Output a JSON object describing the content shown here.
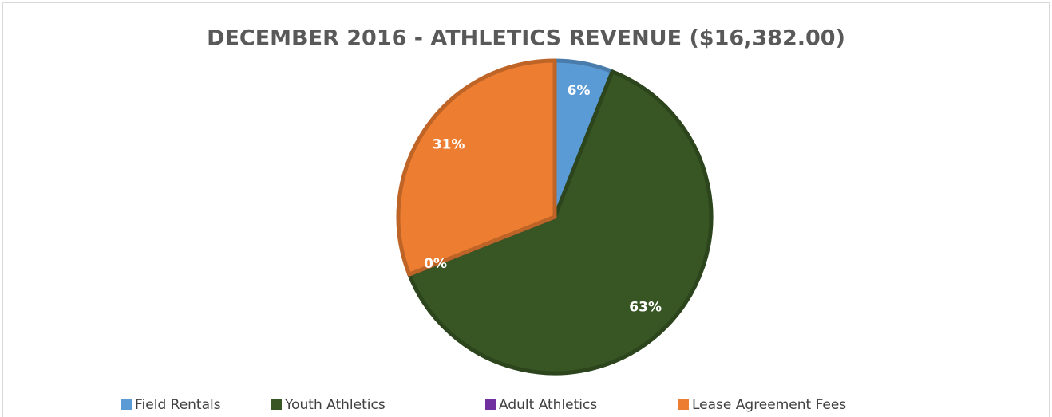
{
  "chart_data": {
    "type": "pie",
    "title": "DECEMBER 2016 - ATHLETICS REVENUE ($16,382.00)",
    "categories": [
      "Field Rentals",
      "Youth Athletics",
      "Adult Athletics",
      "Lease Agreement Fees"
    ],
    "values": [
      6,
      63,
      0,
      31
    ],
    "value_labels": [
      "6%",
      "63%",
      "0%",
      "31%"
    ],
    "colors": [
      "#5b9bd5",
      "#375623",
      "#7030a0",
      "#ed7d31"
    ],
    "legend": "bottom"
  }
}
